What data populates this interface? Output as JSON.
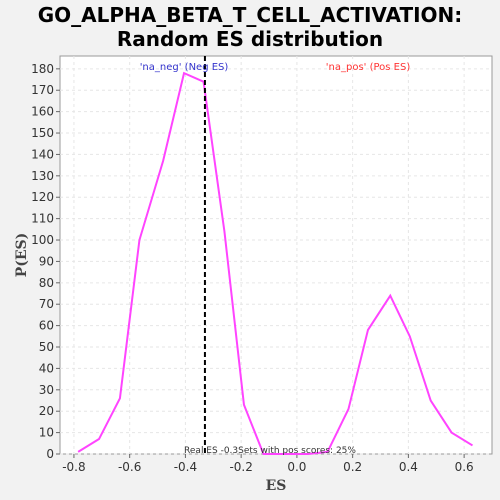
{
  "chart_data": {
    "type": "line",
    "title_line1": "GO_ALPHA_BETA_T_CELL_ACTIVATION:",
    "title_line2": "Random ES distribution",
    "xlabel": "ES",
    "ylabel": "P(ES)",
    "xlim": [
      -0.85,
      0.7
    ],
    "ylim": [
      0,
      186
    ],
    "x_ticks": [
      "-0.8",
      "-0.6",
      "-0.4",
      "-0.2",
      "0.0",
      "0.2",
      "0.4",
      "0.6"
    ],
    "x_tick_values": [
      -0.8,
      -0.6,
      -0.4,
      -0.2,
      0.0,
      0.2,
      0.4,
      0.6
    ],
    "y_ticks": [
      0,
      10,
      20,
      30,
      40,
      50,
      60,
      70,
      80,
      90,
      100,
      110,
      120,
      130,
      140,
      150,
      160,
      170,
      180
    ],
    "grid": true,
    "line_color": "#ff44ff",
    "series": [
      {
        "x": [
          -0.785,
          -0.71,
          -0.635,
          -0.565,
          -0.48,
          -0.405,
          -0.335,
          -0.26,
          -0.19,
          -0.12,
          -0.04,
          0.04,
          0.11,
          0.185,
          0.255,
          0.335,
          0.405,
          0.48,
          0.555,
          0.63
        ],
        "values": [
          1,
          7,
          26,
          100,
          137,
          178,
          174,
          104,
          23,
          0,
          0,
          0,
          1,
          21,
          58,
          74,
          55,
          25,
          10,
          4
        ]
      }
    ],
    "real_es_line": {
      "x": -0.33,
      "color": "#000000",
      "style": "dashed"
    },
    "legend": {
      "neg_label": "'na_neg' (Neg ES)",
      "neg_color": "#3333cc",
      "pos_label": "'na_pos' (Pos ES)",
      "pos_color": "#ff3333"
    },
    "annotation": "Real ES -0.3Sets with pos scores: 25%"
  }
}
